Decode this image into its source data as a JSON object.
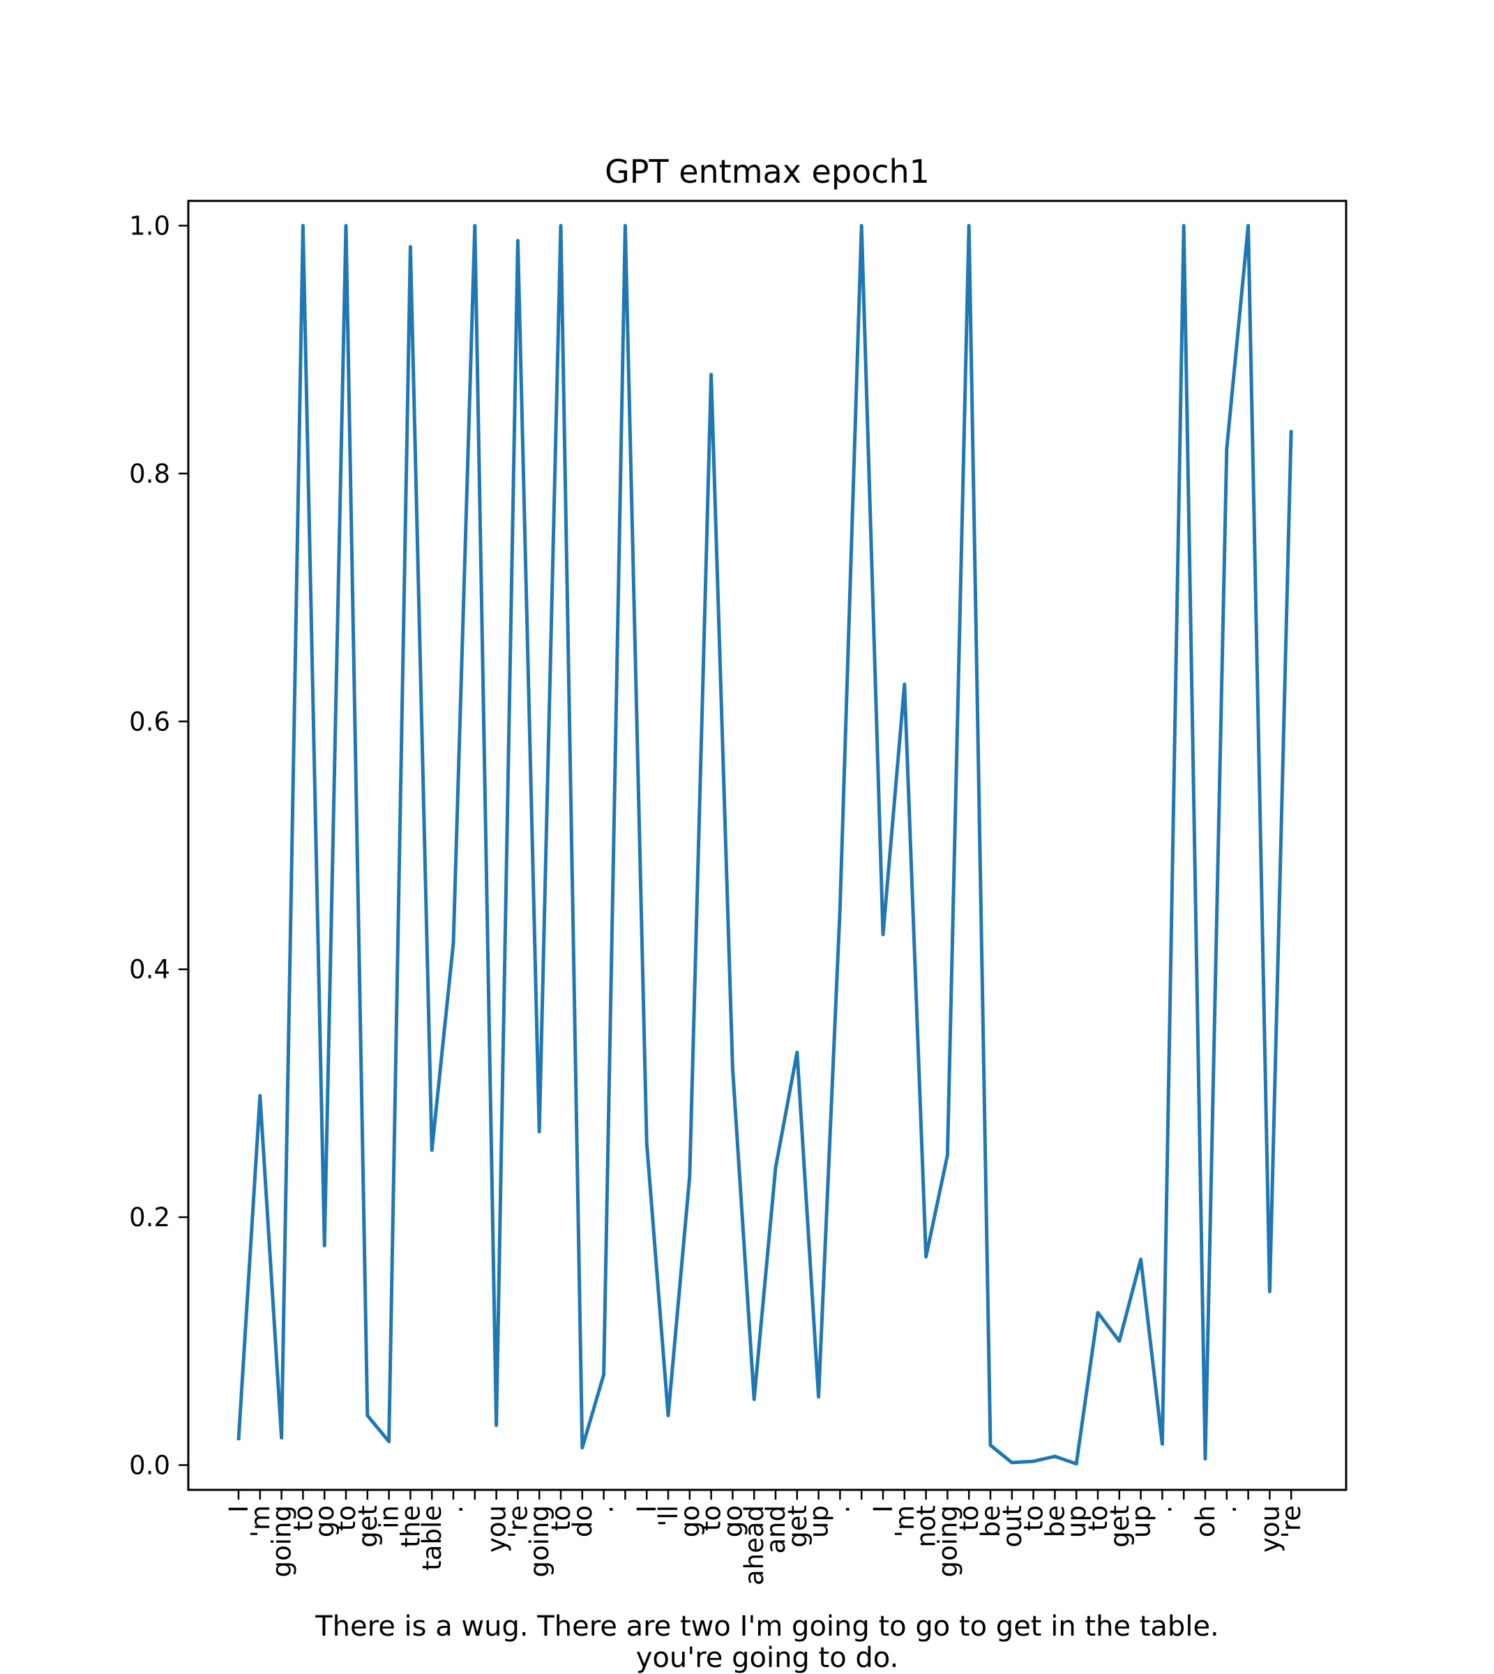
{
  "chart_data": {
    "type": "line",
    "title": "GPT entmax epoch1",
    "xlabel_lines": [
      "There is a wug. There are two  I'm going to go to get in the table.",
      "you're going to do."
    ],
    "ylabel": "",
    "ylim": [
      -0.02,
      1.02
    ],
    "yticks": [
      "0.0",
      "0.2",
      "0.4",
      "0.6",
      "0.8",
      "1.0"
    ],
    "grid": false,
    "line_color": "#1f77b4",
    "x": [
      "I",
      "'m",
      "going",
      "to",
      "go",
      "to",
      "get",
      "in",
      "the",
      "table",
      ".",
      "",
      "you",
      "'re",
      "going",
      "to",
      "do",
      ".",
      "",
      "I",
      "'ll",
      "go",
      "to",
      "go",
      "ahead",
      "and",
      "get",
      "up",
      ".",
      "",
      "I",
      "'m",
      "not",
      "going",
      "to",
      "be",
      "out",
      "to",
      "be",
      "up",
      "to",
      "get",
      "up",
      ".",
      "",
      "oh",
      ".",
      "",
      "you",
      "'re"
    ],
    "values": [
      0.02,
      0.298,
      0.022,
      1.0,
      0.177,
      1.0,
      0.04,
      0.019,
      0.983,
      0.254,
      0.421,
      1.0,
      0.032,
      0.988,
      0.269,
      1.0,
      0.014,
      0.073,
      1.0,
      0.26,
      0.04,
      0.233,
      0.88,
      0.32,
      0.053,
      0.24,
      0.333,
      0.055,
      0.45,
      1.0,
      0.428,
      0.63,
      0.168,
      0.25,
      1.0,
      0.016,
      0.002,
      0.003,
      0.007,
      0.001,
      0.123,
      0.1,
      0.166,
      0.017,
      1.0,
      0.005,
      0.82,
      1.0,
      0.14,
      0.835
    ]
  }
}
